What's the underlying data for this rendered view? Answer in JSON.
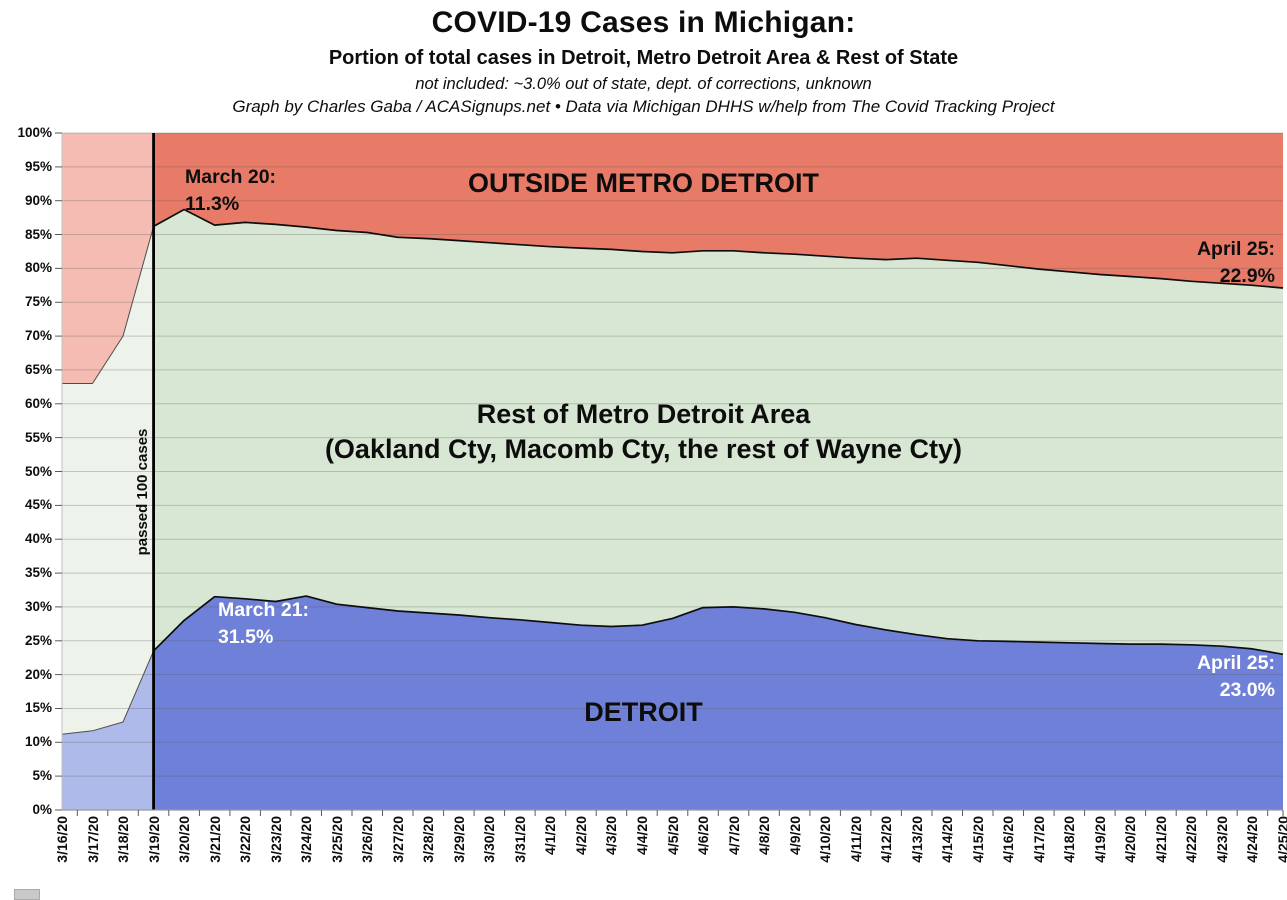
{
  "header": {
    "title": "COVID-19 Cases in Michigan:",
    "subtitle": "Portion of total cases in Detroit, Metro Detroit Area & Rest of State",
    "note": "not included: ~3.0% out of state, dept. of corrections, unknown",
    "credit": "Graph by Charles Gaba / ACASignups.net  •  Data via Michigan DHHS w/help from The Covid Tracking Project"
  },
  "labels": {
    "outside_metro": "OUTSIDE METRO DETROIT",
    "rest_metro_line1": "Rest of Metro Detroit Area",
    "rest_metro_line2": "(Oakland Cty, Macomb Cty, the rest of Wayne Cty)",
    "detroit": "DETROIT"
  },
  "annotations": {
    "march20": {
      "line1": "March 20:",
      "line2": "11.3%"
    },
    "april25_outside": {
      "line1": "April 25:",
      "line2": "22.9%"
    },
    "march21": {
      "line1": "March 21:",
      "line2": "31.5%"
    },
    "april25_detroit": {
      "line1": "April 25:",
      "line2": "23.0%"
    },
    "passed_100": "passed 100 cases"
  },
  "chart_data": {
    "type": "area",
    "stacked": true,
    "units": "percent of total cases",
    "ylim": [
      0,
      100
    ],
    "grid": true,
    "highlight_start_index": 3,
    "vline": {
      "x": "3/19/20",
      "label": "passed 100 cases"
    },
    "x": [
      "3/16/20",
      "3/17/20",
      "3/18/20",
      "3/19/20",
      "3/20/20",
      "3/21/20",
      "3/22/20",
      "3/23/20",
      "3/24/20",
      "3/25/20",
      "3/26/20",
      "3/27/20",
      "3/28/20",
      "3/29/20",
      "3/30/20",
      "3/31/20",
      "4/1/20",
      "4/2/20",
      "4/3/20",
      "4/4/20",
      "4/5/20",
      "4/6/20",
      "4/7/20",
      "4/8/20",
      "4/9/20",
      "4/10/20",
      "4/11/20",
      "4/12/20",
      "4/13/20",
      "4/14/20",
      "4/15/20",
      "4/16/20",
      "4/17/20",
      "4/18/20",
      "4/19/20",
      "4/20/20",
      "4/21/20",
      "4/22/20",
      "4/23/20",
      "4/24/20",
      "4/25/20"
    ],
    "y_ticks": [
      "0%",
      "5%",
      "10%",
      "15%",
      "20%",
      "25%",
      "30%",
      "35%",
      "40%",
      "45%",
      "50%",
      "55%",
      "60%",
      "65%",
      "70%",
      "75%",
      "80%",
      "85%",
      "90%",
      "95%",
      "100%"
    ],
    "series": [
      {
        "name": "Detroit",
        "color": "#6F80D8",
        "faded_color": "#AEBAE9",
        "values": [
          11.2,
          11.7,
          13.0,
          23.5,
          28.0,
          31.5,
          31.2,
          30.8,
          31.6,
          30.4,
          29.9,
          29.4,
          29.1,
          28.8,
          28.4,
          28.1,
          27.7,
          27.3,
          27.1,
          27.3,
          28.3,
          29.9,
          30.0,
          29.7,
          29.2,
          28.4,
          27.4,
          26.6,
          25.9,
          25.3,
          25.0,
          24.9,
          24.8,
          24.7,
          24.6,
          24.5,
          24.5,
          24.4,
          24.2,
          23.8,
          23.0
        ]
      },
      {
        "name": "Rest of Metro Detroit Area",
        "color": "#D8E7D3",
        "faded_color": "#EDF3EA",
        "values": [
          51.8,
          51.3,
          57.0,
          62.7,
          60.7,
          54.9,
          55.6,
          55.7,
          54.5,
          55.2,
          55.4,
          55.2,
          55.3,
          55.3,
          55.4,
          55.4,
          55.5,
          55.7,
          55.7,
          55.2,
          54.0,
          52.7,
          52.6,
          52.6,
          52.9,
          53.4,
          54.1,
          54.7,
          55.6,
          55.9,
          55.9,
          55.5,
          55.1,
          54.8,
          54.5,
          54.3,
          54.0,
          53.7,
          53.6,
          53.7,
          54.1
        ]
      },
      {
        "name": "Outside Metro Detroit",
        "color": "#E87B67",
        "faded_color": "#F4BCB2",
        "values": [
          37.0,
          37.0,
          30.0,
          13.8,
          11.3,
          13.6,
          13.2,
          13.5,
          13.9,
          14.4,
          14.7,
          15.4,
          15.6,
          15.9,
          16.2,
          16.5,
          16.8,
          17.0,
          17.2,
          17.5,
          17.7,
          17.4,
          17.4,
          17.7,
          17.9,
          18.2,
          18.5,
          18.7,
          18.5,
          18.8,
          19.1,
          19.6,
          20.1,
          20.5,
          20.9,
          21.2,
          21.5,
          21.9,
          22.2,
          22.5,
          22.9
        ]
      }
    ]
  }
}
